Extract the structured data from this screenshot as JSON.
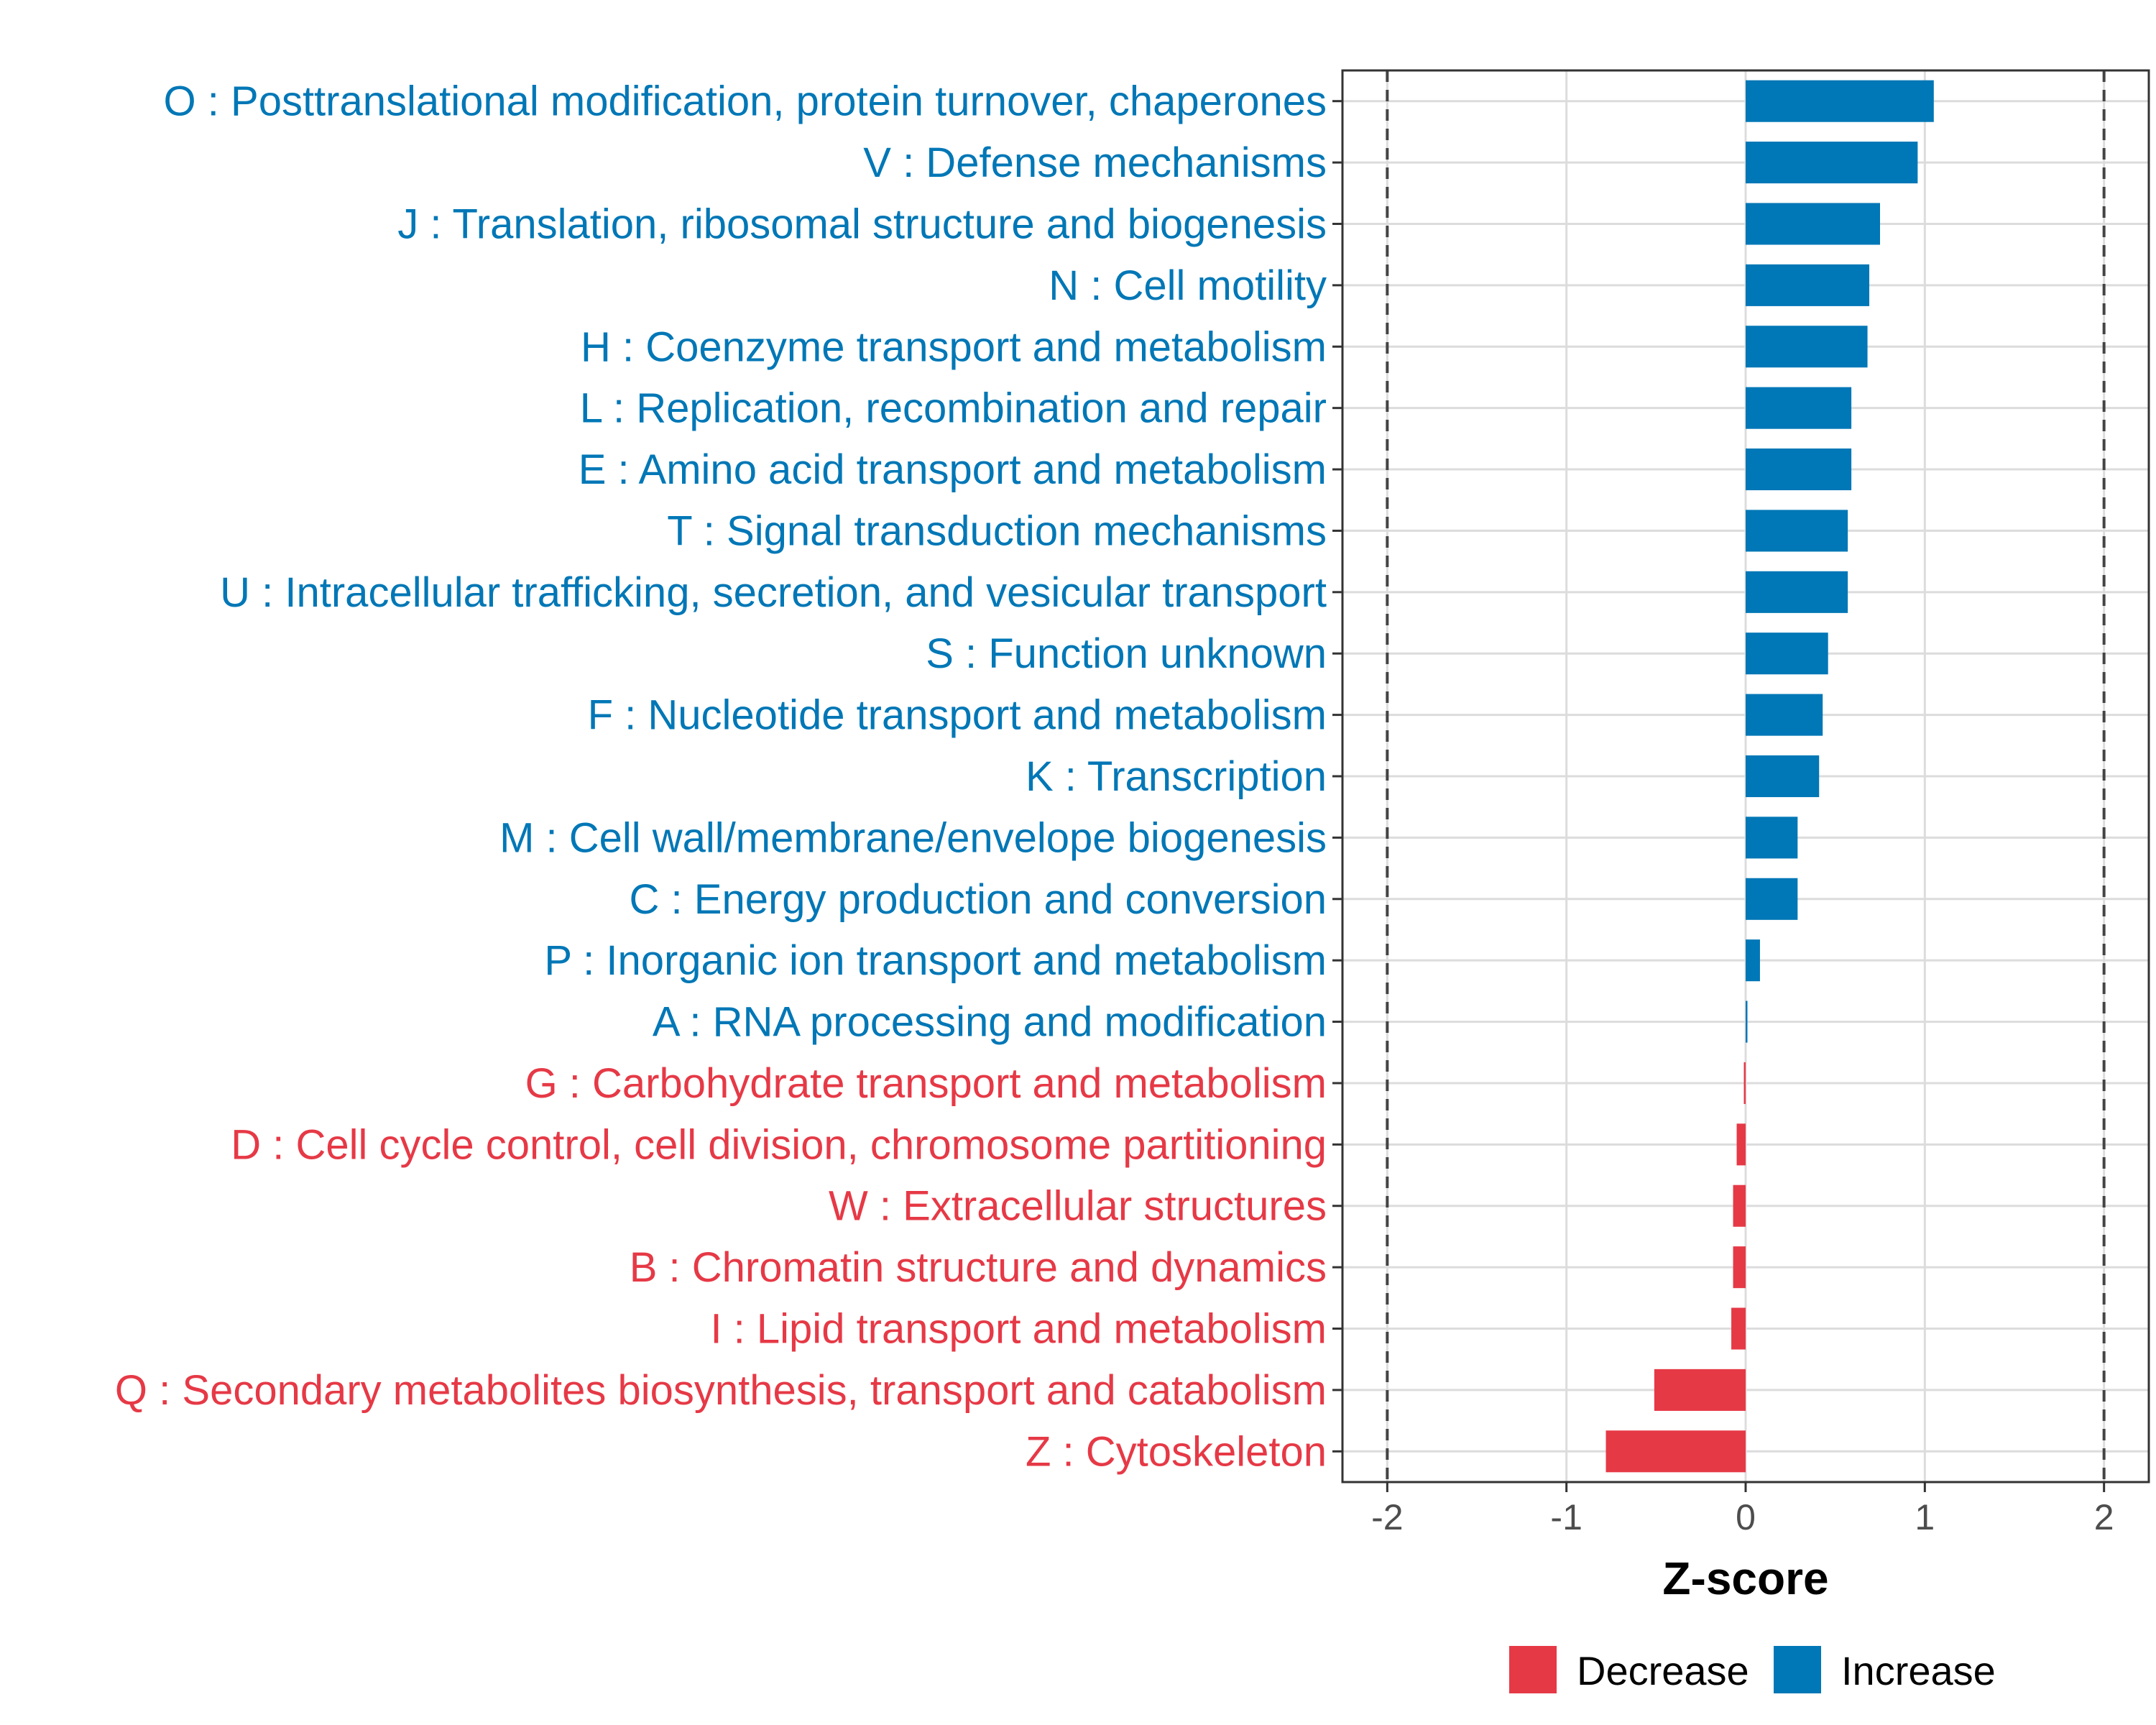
{
  "chart_data": {
    "type": "bar",
    "orientation": "horizontal",
    "xlabel": "Z-score",
    "xlim": [
      -2.25,
      2.25
    ],
    "xticks": [
      -2,
      -1,
      0,
      1,
      2
    ],
    "xtick_labels": [
      "-2",
      "-1",
      "0",
      "1",
      "2"
    ],
    "reference_lines": [
      -2,
      2
    ],
    "grid": true,
    "legend_position": "bottom",
    "legend": [
      {
        "label": "Decrease",
        "color": "#E63946"
      },
      {
        "label": "Increase",
        "color": "#0077B6"
      }
    ],
    "categories": [
      {
        "label": "O : Posttranslational modification, protein turnover, chaperones",
        "value": 1.05,
        "group": "Increase"
      },
      {
        "label": "V : Defense mechanisms",
        "value": 0.96,
        "group": "Increase"
      },
      {
        "label": "J : Translation, ribosomal structure and biogenesis",
        "value": 0.75,
        "group": "Increase"
      },
      {
        "label": "N : Cell motility",
        "value": 0.69,
        "group": "Increase"
      },
      {
        "label": "H : Coenzyme transport and metabolism",
        "value": 0.68,
        "group": "Increase"
      },
      {
        "label": "L : Replication, recombination and repair",
        "value": 0.59,
        "group": "Increase"
      },
      {
        "label": "E : Amino acid transport and metabolism",
        "value": 0.59,
        "group": "Increase"
      },
      {
        "label": "T : Signal transduction mechanisms",
        "value": 0.57,
        "group": "Increase"
      },
      {
        "label": "U : Intracellular trafficking, secretion, and vesicular transport",
        "value": 0.57,
        "group": "Increase"
      },
      {
        "label": "S : Function unknown",
        "value": 0.46,
        "group": "Increase"
      },
      {
        "label": "F : Nucleotide transport and metabolism",
        "value": 0.43,
        "group": "Increase"
      },
      {
        "label": "K : Transcription",
        "value": 0.41,
        "group": "Increase"
      },
      {
        "label": "M : Cell wall/membrane/envelope biogenesis",
        "value": 0.29,
        "group": "Increase"
      },
      {
        "label": "C : Energy production and conversion",
        "value": 0.29,
        "group": "Increase"
      },
      {
        "label": "P : Inorganic ion transport and metabolism",
        "value": 0.08,
        "group": "Increase"
      },
      {
        "label": "A : RNA processing and modification",
        "value": 0.01,
        "group": "Increase"
      },
      {
        "label": "G : Carbohydrate transport and metabolism",
        "value": -0.01,
        "group": "Decrease"
      },
      {
        "label": "D : Cell cycle control, cell division, chromosome partitioning",
        "value": -0.05,
        "group": "Decrease"
      },
      {
        "label": "W : Extracellular structures",
        "value": -0.07,
        "group": "Decrease"
      },
      {
        "label": "B : Chromatin structure and dynamics",
        "value": -0.07,
        "group": "Decrease"
      },
      {
        "label": "I : Lipid transport and metabolism",
        "value": -0.08,
        "group": "Decrease"
      },
      {
        "label": "Q : Secondary metabolites biosynthesis, transport and catabolism",
        "value": -0.51,
        "group": "Decrease"
      },
      {
        "label": "Z : Cytoskeleton",
        "value": -0.78,
        "group": "Decrease"
      }
    ]
  }
}
